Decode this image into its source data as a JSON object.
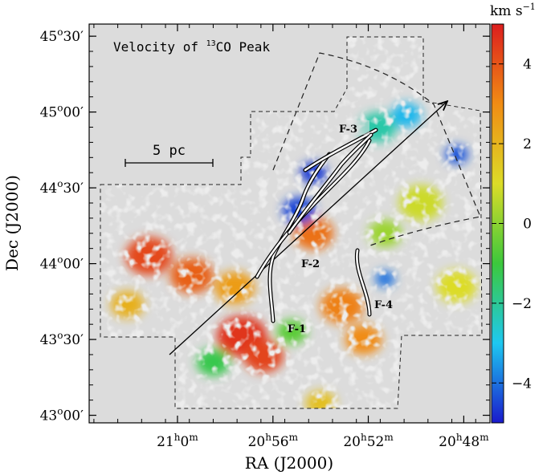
{
  "chart_data": {
    "type": "heatmap",
    "title": "Velocity of 13CO Peak",
    "title_parts": {
      "prefix": "Velocity of ",
      "superscript": "13",
      "suffix": "CO Peak"
    },
    "xlabel": "RA (J2000)",
    "ylabel": "Dec (J2000)",
    "x_ticks": [
      {
        "label_h": "21",
        "label_m": "0",
        "ra_hours": 21.0
      },
      {
        "label_h": "20",
        "label_m": "56",
        "ra_hours": 20.9333
      },
      {
        "label_h": "20",
        "label_m": "52",
        "ra_hours": 20.8667
      },
      {
        "label_h": "20",
        "label_m": "48",
        "ra_hours": 20.8
      }
    ],
    "y_ticks": [
      {
        "label_d": "45",
        "label_m": "30",
        "dec": 45.5
      },
      {
        "label_d": "45",
        "label_m": "00",
        "dec": 45.0
      },
      {
        "label_d": "44",
        "label_m": "30",
        "dec": 44.5
      },
      {
        "label_d": "44",
        "label_m": "00",
        "dec": 44.0
      },
      {
        "label_d": "43",
        "label_m": "30",
        "dec": 43.5
      },
      {
        "label_d": "43",
        "label_m": "00",
        "dec": 43.0
      }
    ],
    "xlim": [
      21.0617,
      20.7817
    ],
    "ylim": [
      42.95,
      45.58
    ],
    "colorbar": {
      "label": "km s",
      "label_exp": "−1",
      "range": [
        -5,
        5
      ],
      "ticks": [
        {
          "value": 4,
          "label": "4"
        },
        {
          "value": 2,
          "label": "2"
        },
        {
          "value": 0,
          "label": "0"
        },
        {
          "value": -2,
          "label": "−2"
        },
        {
          "value": -4,
          "label": "−4"
        }
      ],
      "colormap": [
        "#1a1acc",
        "#1ec8f0",
        "#3cc83c",
        "#dcdc28",
        "#f08c14",
        "#dc1e1e"
      ]
    },
    "scale_bar": {
      "label": "5 pc"
    },
    "filaments": [
      {
        "name": "F-1",
        "label": "F-1"
      },
      {
        "name": "F-2",
        "label": "F-2"
      },
      {
        "name": "F-3",
        "label": "F-3"
      },
      {
        "name": "F-4",
        "label": "F-4"
      }
    ],
    "regions": [
      {
        "v": 4.6,
        "ra": 20.955,
        "dec": 43.52,
        "s": 0.15
      },
      {
        "v": 4.3,
        "ra": 20.94,
        "dec": 43.39,
        "s": 0.12
      },
      {
        "v": 4.2,
        "ra": 21.02,
        "dec": 44.05,
        "s": 0.14
      },
      {
        "v": 3.8,
        "ra": 20.99,
        "dec": 43.92,
        "s": 0.13
      },
      {
        "v": 3.5,
        "ra": 20.905,
        "dec": 44.2,
        "s": 0.12
      },
      {
        "v": 3.2,
        "ra": 20.885,
        "dec": 43.72,
        "s": 0.13
      },
      {
        "v": 3.0,
        "ra": 20.87,
        "dec": 43.5,
        "s": 0.11
      },
      {
        "v": 2.6,
        "ra": 20.96,
        "dec": 43.84,
        "s": 0.12
      },
      {
        "v": 2.1,
        "ra": 21.035,
        "dec": 43.73,
        "s": 0.1
      },
      {
        "v": 1.7,
        "ra": 20.9,
        "dec": 43.08,
        "s": 0.09
      },
      {
        "v": 1.0,
        "ra": 20.805,
        "dec": 43.85,
        "s": 0.12
      },
      {
        "v": 0.8,
        "ra": 20.83,
        "dec": 44.4,
        "s": 0.13
      },
      {
        "v": 0.2,
        "ra": 20.855,
        "dec": 44.2,
        "s": 0.1
      },
      {
        "v": -0.6,
        "ra": 20.92,
        "dec": 43.55,
        "s": 0.09
      },
      {
        "v": -1.2,
        "ra": 20.975,
        "dec": 43.35,
        "s": 0.1
      },
      {
        "v": -2.2,
        "ra": 20.86,
        "dec": 44.9,
        "s": 0.11
      },
      {
        "v": -3.2,
        "ra": 20.84,
        "dec": 44.98,
        "s": 0.09
      },
      {
        "v": -4.5,
        "ra": 20.915,
        "dec": 44.35,
        "s": 0.1
      },
      {
        "v": -4.6,
        "ra": 20.905,
        "dec": 44.6,
        "s": 0.08
      },
      {
        "v": -4.3,
        "ra": 20.805,
        "dec": 44.72,
        "s": 0.07
      },
      {
        "v": -4.0,
        "ra": 20.855,
        "dec": 43.9,
        "s": 0.06
      }
    ]
  }
}
